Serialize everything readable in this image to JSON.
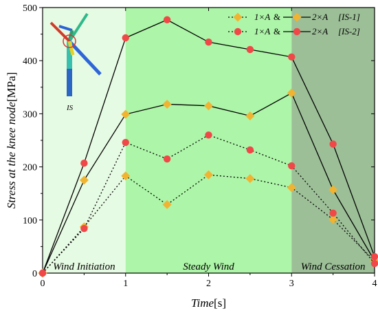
{
  "chart_data": {
    "type": "line",
    "xlabel": "Time[s]",
    "ylabel": "Stress at the knee node[MPa]",
    "xlim": [
      0,
      4
    ],
    "ylim": [
      0,
      500
    ],
    "xticks": [
      0,
      1,
      2,
      3,
      4
    ],
    "yticks": [
      0,
      100,
      200,
      300,
      400,
      500
    ],
    "grid": false,
    "legend_position": "top-right",
    "phases": [
      {
        "label": "Wind Initiation",
        "range": [
          0,
          1
        ],
        "color": "#e6fbe3"
      },
      {
        "label": "Steady Wind",
        "range": [
          1,
          3
        ],
        "color": "#adf5a8"
      },
      {
        "label": "Wind Cessation",
        "range": [
          3,
          4
        ],
        "color": "#9cbf97"
      }
    ],
    "series": [
      {
        "name": "1×A [IS-1]",
        "marker": "diamond",
        "line": "dotted",
        "color": "#f0b432",
        "x": [
          0,
          0.5,
          1,
          1.5,
          2,
          2.5,
          3,
          3.5,
          4
        ],
        "y": [
          0,
          87,
          183,
          129,
          185,
          178,
          161,
          101,
          23
        ]
      },
      {
        "name": "2×A [IS-1]",
        "marker": "diamond",
        "line": "solid",
        "color": "#f0b432",
        "x": [
          0,
          0.5,
          1,
          1.5,
          2,
          2.5,
          3,
          3.5,
          4
        ],
        "y": [
          0,
          175,
          299,
          318,
          315,
          296,
          339,
          157,
          23
        ]
      },
      {
        "name": "1×A [IS-2]",
        "marker": "circle",
        "line": "dotted",
        "color": "#f04848",
        "x": [
          0,
          0.5,
          1,
          1.5,
          2,
          2.5,
          3,
          3.5,
          4
        ],
        "y": [
          0,
          84,
          246,
          215,
          260,
          232,
          202,
          113,
          18
        ]
      },
      {
        "name": "2×A [IS-2]",
        "marker": "circle",
        "line": "solid",
        "color": "#f04848",
        "x": [
          0,
          0.5,
          1,
          1.5,
          2,
          2.5,
          3,
          3.5,
          4
        ],
        "y": [
          0,
          207,
          443,
          477,
          435,
          421,
          407,
          243,
          31
        ]
      }
    ],
    "legend": {
      "rows": [
        {
          "a": "1×A",
          "amp": "&",
          "b": "2×A",
          "tag": "[IS-1]",
          "marker": "diamond"
        },
        {
          "a": "1×A",
          "amp": "&",
          "b": "2×A",
          "tag": "[IS-2]",
          "marker": "circle"
        }
      ]
    },
    "inset": {
      "label": "IS"
    }
  }
}
